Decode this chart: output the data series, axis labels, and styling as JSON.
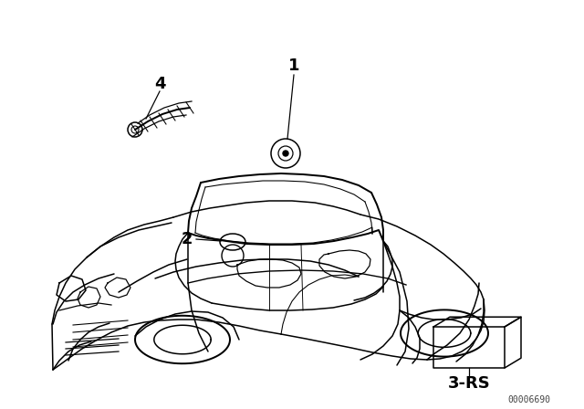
{
  "bg_color": "#ffffff",
  "line_color": "#000000",
  "fig_width": 6.4,
  "fig_height": 4.48,
  "dpi": 100,
  "label_1": "1",
  "label_2": "2",
  "label_4": "4",
  "label_3rs": "3-RS",
  "watermark": "00006690",
  "lw": 1.1
}
